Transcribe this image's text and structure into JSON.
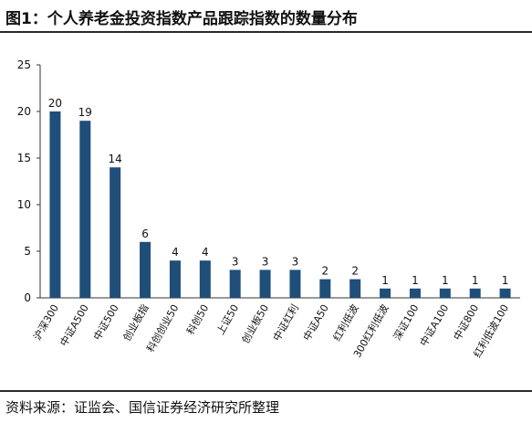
{
  "title": "图1：个人养老金投资指数产品跟踪指数的数量分布",
  "source": "资料来源：证监会、国信证券经济研究所整理",
  "colors": {
    "bar": "#1f4e79",
    "axis": "#333333",
    "text": "#111111"
  },
  "chart_data": {
    "type": "bar",
    "categories": [
      "沪深300",
      "中证A500",
      "中证500",
      "创业板指",
      "科创创业50",
      "科创50",
      "上证50",
      "创业板50",
      "中证红利",
      "中证A50",
      "红利低波",
      "300红利低波",
      "深证100",
      "中证A100",
      "中证800",
      "红利低波100"
    ],
    "values": [
      20,
      19,
      14,
      6,
      4,
      4,
      3,
      3,
      3,
      2,
      2,
      1,
      1,
      1,
      1,
      1
    ],
    "yticks": [
      0,
      5,
      10,
      15,
      20,
      25
    ],
    "ylim": [
      0,
      25
    ],
    "grid": false,
    "data_labels": true
  }
}
